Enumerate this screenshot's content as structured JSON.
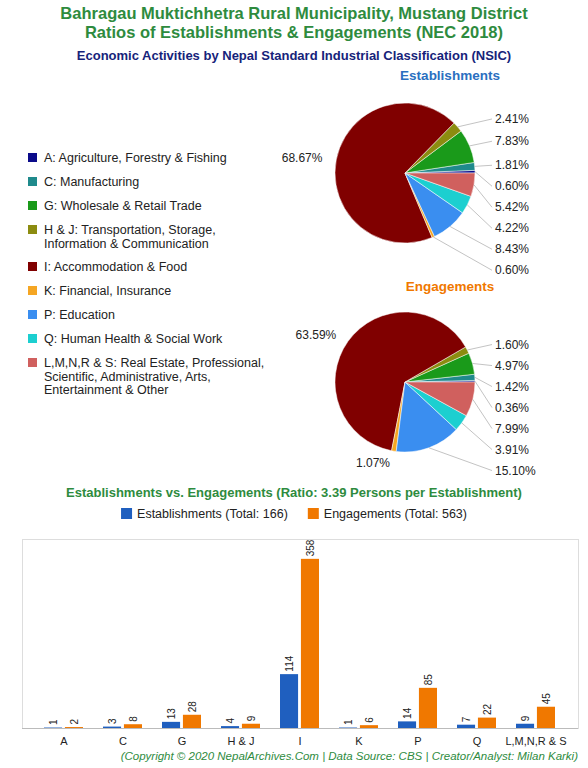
{
  "title": [
    "Bahragau Muktichhetra Rural Municipality, Mustang District",
    "Ratios of Establishments & Engagements (NEC 2018)"
  ],
  "subtitle": "Economic Activities by Nepal Standard Industrial Classification (NSIC)",
  "caption": "(Copyright © 2020 NepalArchives.Com | Data Source: CBS | Creator/Analyst: Milan Karki)",
  "chart_data": [
    {
      "type": "pie",
      "title": "Establishments",
      "categories": [
        "A: Agriculture, Forestry & Fishing",
        "C: Manufacturing",
        "G: Wholesale & Retail Trade",
        "H & J: Transportation, Storage, Information & Communication",
        "I: Accommodation & Food",
        "K: Financial, Insurance",
        "P: Education",
        "Q: Human Health & Social Work",
        "L,M,N,R & S: Real Estate, Professional, Scientific, Administrative, Arts, Entertainment & Other"
      ],
      "values": [
        0.6,
        1.81,
        7.83,
        2.41,
        68.67,
        0.6,
        8.43,
        4.22,
        5.42
      ],
      "value_labels": [
        "0.60%",
        "1.81%",
        "7.83%",
        "2.41%",
        "68.67%",
        "0.60%",
        "8.43%",
        "4.22%",
        "5.42%"
      ],
      "colors": [
        "#0b0b8a",
        "#1f8a8c",
        "#1a9a1a",
        "#8c8c10",
        "#800000",
        "#f5a623",
        "#3a8ef0",
        "#1ccfd0",
        "#d0605e"
      ],
      "legend": "left",
      "data_labels": true
    },
    {
      "type": "pie",
      "title": "Engagements",
      "categories": [
        "A: Agriculture, Forestry & Fishing",
        "C: Manufacturing",
        "G: Wholesale & Retail Trade",
        "H & J: Transportation, Storage, Information & Communication",
        "I: Accommodation & Food",
        "K: Financial, Insurance",
        "P: Education",
        "Q: Human Health & Social Work",
        "L,M,N,R & S: Real Estate, Professional, Scientific, Administrative, Arts, Entertainment & Other"
      ],
      "values": [
        0.36,
        1.42,
        4.97,
        1.6,
        63.59,
        1.07,
        15.1,
        3.91,
        7.99
      ],
      "value_labels": [
        "0.36%",
        "1.42%",
        "4.97%",
        "1.60%",
        "63.59%",
        "1.07%",
        "15.10%",
        "3.91%",
        "7.99%"
      ],
      "colors": [
        "#0b0b8a",
        "#1f8a8c",
        "#1a9a1a",
        "#8c8c10",
        "#800000",
        "#f5a623",
        "#3a8ef0",
        "#1ccfd0",
        "#d0605e"
      ],
      "data_labels": true
    },
    {
      "type": "bar",
      "title": "Establishments vs. Engagements (Ratio: 3.39 Persons per Establishment)",
      "categories": [
        "A",
        "C",
        "G",
        "H & J",
        "I",
        "K",
        "P",
        "Q",
        "L,M,N,R & S"
      ],
      "series": [
        {
          "name": "Establishments (Total: 166)",
          "color": "#1f5fbf",
          "values": [
            1,
            3,
            13,
            4,
            114,
            1,
            14,
            7,
            9
          ]
        },
        {
          "name": "Engagements (Total: 563)",
          "color": "#f07800",
          "values": [
            2,
            8,
            28,
            9,
            358,
            6,
            85,
            22,
            45
          ]
        }
      ],
      "ylim": [
        0,
        400
      ],
      "tick_labels": "x",
      "data_labels": true,
      "legend": "top",
      "grid": false
    }
  ]
}
